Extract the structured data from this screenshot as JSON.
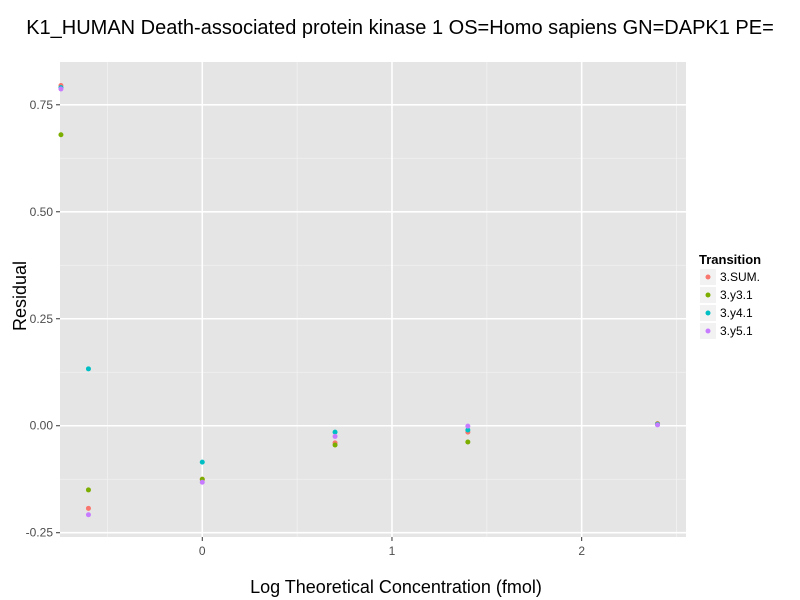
{
  "chart_data": {
    "type": "scatter",
    "title": "K1_HUMAN Death-associated protein kinase 1 OS=Homo sapiens GN=DAPK1 PE=",
    "xlabel": "Log Theoretical Concentration (fmol)",
    "ylabel": "Residual",
    "xlim": [
      -0.75,
      2.55
    ],
    "ylim": [
      -0.26,
      0.85
    ],
    "x_ticks": [
      0,
      1,
      2
    ],
    "x_tick_labels": [
      "0",
      "1",
      "2"
    ],
    "y_ticks": [
      -0.25,
      0.0,
      0.25,
      0.5,
      0.75
    ],
    "y_tick_labels": [
      "-0.25",
      "0.00",
      "0.25",
      "0.50",
      "0.75"
    ],
    "grid": true,
    "legend": {
      "title": "Transition",
      "placement": "right"
    },
    "series": [
      {
        "name": "3.SUM.",
        "color": "#F8766D",
        "points": [
          [
            -0.745,
            0.795
          ],
          [
            -0.6,
            -0.193
          ],
          [
            0.0,
            -0.125
          ],
          [
            0.7,
            -0.04
          ],
          [
            1.4,
            -0.015
          ],
          [
            2.4,
            0.005
          ]
        ]
      },
      {
        "name": "3.y3.1",
        "color": "#7CAE00",
        "points": [
          [
            -0.745,
            0.68
          ],
          [
            -0.6,
            -0.15
          ],
          [
            0.0,
            -0.125
          ],
          [
            0.7,
            -0.045
          ],
          [
            1.4,
            -0.038
          ],
          [
            2.4,
            0.004
          ]
        ]
      },
      {
        "name": "3.y4.1",
        "color": "#00BFC4",
        "points": [
          [
            -0.745,
            0.79
          ],
          [
            -0.6,
            0.133
          ],
          [
            0.0,
            -0.085
          ],
          [
            0.7,
            -0.015
          ],
          [
            1.4,
            -0.01
          ],
          [
            2.4,
            0.003
          ]
        ]
      },
      {
        "name": "3.y5.1",
        "color": "#C77CFF",
        "points": [
          [
            -0.745,
            0.787
          ],
          [
            -0.6,
            -0.208
          ],
          [
            0.0,
            -0.132
          ],
          [
            0.7,
            -0.025
          ],
          [
            1.4,
            -0.001
          ],
          [
            2.4,
            0.002
          ]
        ]
      }
    ]
  }
}
